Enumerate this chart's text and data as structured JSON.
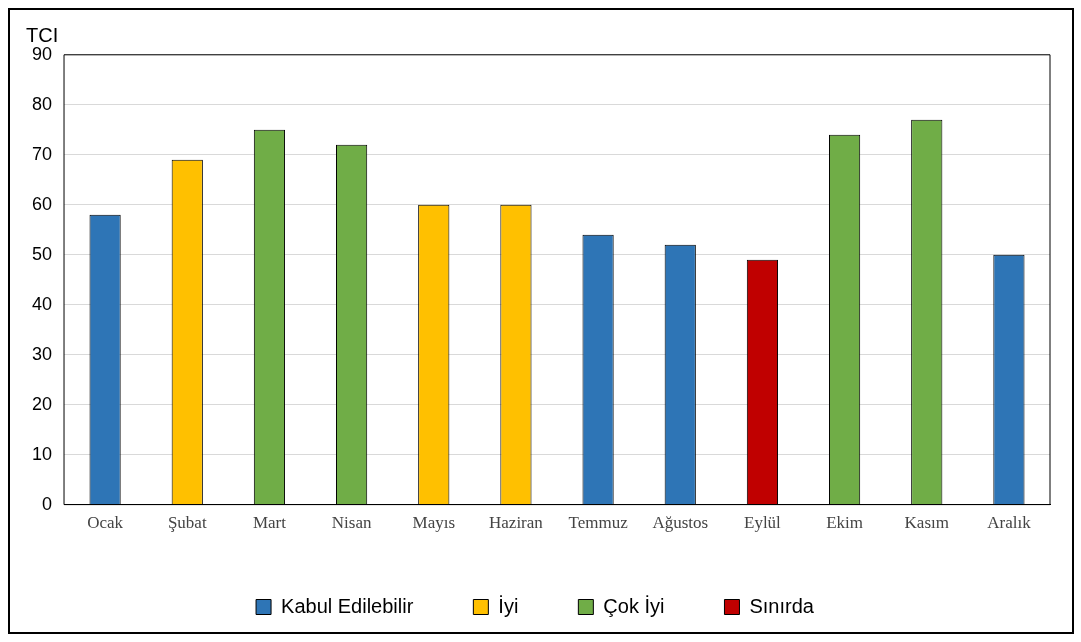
{
  "chart_data": {
    "type": "bar",
    "ylabel": "TCI",
    "categories": [
      "Ocak",
      "Şubat",
      "Mart",
      "Nisan",
      "Mayıs",
      "Haziran",
      "Temmuz",
      "Ağustos",
      "Eylül",
      "Ekim",
      "Kasım",
      "Aralık"
    ],
    "series": [
      {
        "name": "Kabul Edilebilir",
        "color": "#2e75b6",
        "values": [
          58,
          null,
          null,
          null,
          null,
          null,
          54,
          52,
          null,
          null,
          null,
          50
        ]
      },
      {
        "name": "İyi",
        "color": "#ffc000",
        "values": [
          null,
          69,
          null,
          null,
          60,
          60,
          null,
          null,
          null,
          null,
          null,
          null
        ]
      },
      {
        "name": "Çok İyi",
        "color": "#70ad47",
        "values": [
          null,
          null,
          75,
          72,
          null,
          null,
          null,
          null,
          null,
          74,
          77,
          null
        ]
      },
      {
        "name": "Sınırda",
        "color": "#c00000",
        "values": [
          null,
          null,
          null,
          null,
          null,
          null,
          null,
          null,
          49,
          null,
          null,
          null
        ]
      }
    ],
    "ylim": [
      0,
      90
    ],
    "yticks": [
      0,
      10,
      20,
      30,
      40,
      50,
      60,
      70,
      80,
      90
    ],
    "grid": "y",
    "legend": "bottom"
  }
}
